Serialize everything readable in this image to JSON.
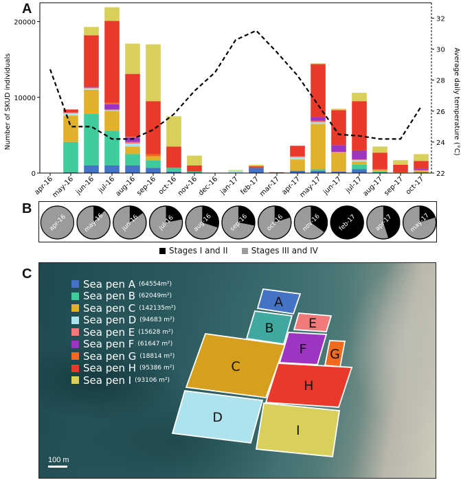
{
  "panels": {
    "a": "A",
    "b": "B",
    "c": "C"
  },
  "chart_data": {
    "type": "bar",
    "stacked": true,
    "categories": [
      "apr-16",
      "may-16",
      "jun-16",
      "jul-16",
      "aug-16",
      "sep-16",
      "oct-16",
      "nov-16",
      "dec-16",
      "jan-17",
      "feb-17",
      "mar-17",
      "apr-17",
      "may-17",
      "jun-17",
      "jul-17",
      "aug-17",
      "sep-17",
      "oct-17"
    ],
    "ylabel": "Number of SKUD individuals",
    "y2label": "Average daily temperature (°C)",
    "ylim": [
      0,
      22500
    ],
    "yticks": [
      "0",
      "10000",
      "20000"
    ],
    "y2lim": [
      22,
      33
    ],
    "y2ticks": [
      "22",
      "24",
      "26",
      "28",
      "30",
      "32"
    ],
    "series": [
      {
        "name": "Sea pen A",
        "color": "#4472c4",
        "values": [
          0,
          100,
          1000,
          1000,
          1000,
          700,
          200,
          100,
          0,
          0,
          700,
          0,
          300,
          300,
          200,
          500,
          100,
          0,
          100
        ]
      },
      {
        "name": "Sea pen B",
        "color": "#3fcb9b",
        "values": [
          0,
          4000,
          6800,
          4600,
          1500,
          1000,
          500,
          100,
          0,
          0,
          0,
          0,
          0,
          200,
          0,
          600,
          100,
          0,
          0
        ]
      },
      {
        "name": "Sea pen C",
        "color": "#e1b12b",
        "values": [
          0,
          3500,
          3200,
          2600,
          1000,
          500,
          0,
          0,
          0,
          0,
          0,
          0,
          1500,
          6000,
          2500,
          400,
          200,
          100,
          200
        ]
      },
      {
        "name": "Sea pen D",
        "color": "#aee3ee",
        "values": [
          0,
          300,
          200,
          100,
          400,
          0,
          0,
          0,
          0,
          300,
          0,
          0,
          300,
          200,
          0,
          200,
          0,
          0,
          0
        ]
      },
      {
        "name": "Sea pen E",
        "color": "#f07a7a",
        "values": [
          0,
          100,
          100,
          100,
          200,
          0,
          0,
          0,
          0,
          0,
          0,
          0,
          100,
          200,
          100,
          100,
          100,
          0,
          100
        ]
      },
      {
        "name": "Sea pen F",
        "color": "#9d35c2",
        "values": [
          0,
          0,
          100,
          700,
          600,
          0,
          0,
          0,
          0,
          0,
          0,
          0,
          0,
          500,
          900,
          1200,
          0,
          0,
          200
        ]
      },
      {
        "name": "Sea pen G",
        "color": "#f06a20",
        "values": [
          0,
          0,
          0,
          200,
          100,
          300,
          0,
          0,
          0,
          0,
          0,
          0,
          0,
          0,
          0,
          0,
          0,
          0,
          0
        ]
      },
      {
        "name": "Sea pen H",
        "color": "#e8392b",
        "values": [
          0,
          400,
          6800,
          10800,
          8300,
          7000,
          2800,
          800,
          0,
          0,
          200,
          100,
          1400,
          7000,
          4600,
          6500,
          2200,
          1000,
          1000
        ]
      },
      {
        "name": "Sea pen I",
        "color": "#d8d05a",
        "values": [
          0,
          0,
          1100,
          1800,
          4000,
          7500,
          4000,
          1300,
          0,
          100,
          200,
          0,
          0,
          100,
          200,
          1100,
          800,
          600,
          900
        ]
      }
    ],
    "temperature": [
      28.7,
      25.0,
      25.0,
      24.2,
      24.2,
      24.8,
      25.8,
      27.3,
      28.5,
      30.6,
      31.2,
      29.8,
      28.3,
      26.4,
      24.5,
      24.4,
      24.2,
      24.2,
      26.3
    ],
    "pies": {
      "labels": [
        "apr-16",
        "may-16",
        "jun-16",
        "jul-16",
        "aug-16",
        "sep-16",
        "oct-16",
        "nov-16",
        "feb-17",
        "apr-17",
        "may-17"
      ],
      "stage_I_II_fraction": [
        0.0,
        0.12,
        0.15,
        0.22,
        0.3,
        0.28,
        0.2,
        0.35,
        1.0,
        0.45,
        0.2
      ],
      "legend": [
        "Stages I and II",
        "Stages III and IV"
      ],
      "colors": [
        "#000000",
        "#9b9b9b"
      ]
    }
  },
  "map": {
    "pens": [
      {
        "label": "A",
        "color": "#4472c4"
      },
      {
        "label": "B",
        "color": "#3fa9a0"
      },
      {
        "label": "C",
        "color": "#d6a01e"
      },
      {
        "label": "D",
        "color": "#aee3ee"
      },
      {
        "label": "E",
        "color": "#f07a7a"
      },
      {
        "label": "F",
        "color": "#9d35c2"
      },
      {
        "label": "G",
        "color": "#f06a20"
      },
      {
        "label": "H",
        "color": "#e8392b"
      },
      {
        "label": "I",
        "color": "#d8d05a"
      }
    ],
    "legend": [
      {
        "name": "Sea pen A",
        "area": "(64554m²)",
        "color": "#4472c4"
      },
      {
        "name": "Sea pen B",
        "area": "(62049m²)",
        "color": "#3fcb9b"
      },
      {
        "name": "Sea pen C",
        "area": "(142135m²)",
        "color": "#e1b12b"
      },
      {
        "name": "Sea pen D",
        "area": "(94683 m²)",
        "color": "#aee3ee"
      },
      {
        "name": "Sea pen E",
        "area": "(15628 m²)",
        "color": "#f07a7a"
      },
      {
        "name": "Sea pen F",
        "area": "(61647 m²)",
        "color": "#9d35c2"
      },
      {
        "name": "Sea pen G",
        "area": "(18814 m²)",
        "color": "#f06a20"
      },
      {
        "name": "Sea pen H",
        "area": "(95386 m²)",
        "color": "#e8392b"
      },
      {
        "name": "Sea pen I",
        "area": "(93106 m²)",
        "color": "#d8d05a"
      }
    ],
    "scale_label": "100 m"
  }
}
